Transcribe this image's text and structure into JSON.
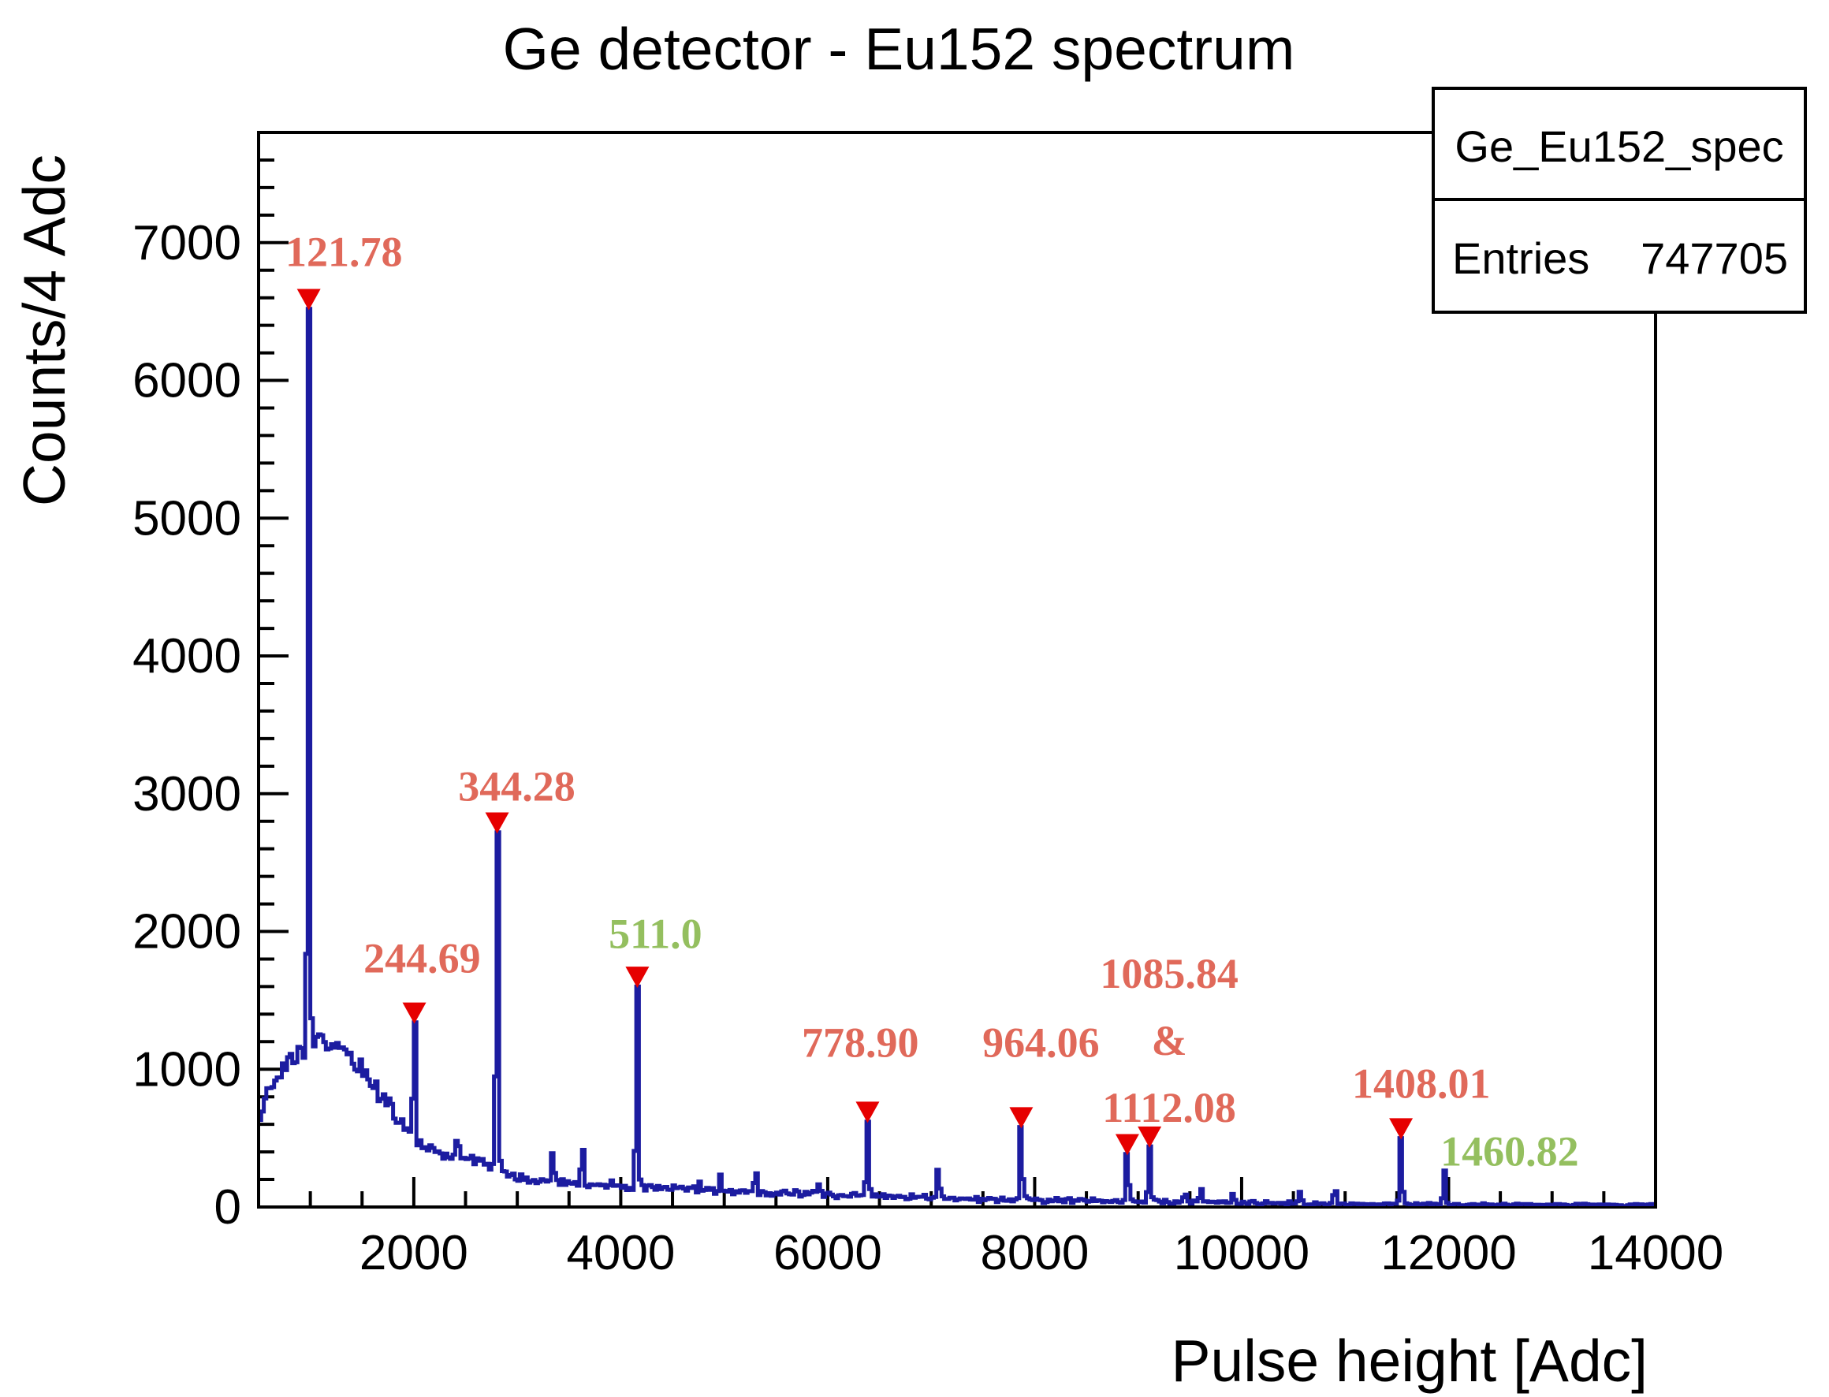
{
  "title": "Ge detector - Eu152 spectrum",
  "axes": {
    "x_title": "Pulse height [Adc]",
    "y_title": "Counts/4 Adc"
  },
  "stats_box": {
    "title": "Ge_Eu152_spec",
    "entries_label": "Entries",
    "entries_value": "747705"
  },
  "chart_data": {
    "type": "line",
    "title": "Ge detector - Eu152 spectrum",
    "xlabel": "Pulse height [Adc]",
    "ylabel": "Counts/4 Adc",
    "xlim": [
      500,
      14000
    ],
    "ylim": [
      0,
      7800
    ],
    "x_major_ticks": [
      2000,
      4000,
      6000,
      8000,
      10000,
      12000,
      14000
    ],
    "x_minor_step": 500,
    "y_major_ticks": [
      0,
      1000,
      2000,
      3000,
      4000,
      5000,
      6000,
      7000
    ],
    "y_minor_step": 200,
    "grid": false,
    "legend_position": "none",
    "bin_width_adc": 25,
    "line_color": "#1c1ca0",
    "marker_color": "#e60000",
    "frame_color": "#000000",
    "label_colors": {
      "red": "#e0695a",
      "green": "#94bf5f"
    },
    "continuum": [
      [
        500,
        560
      ],
      [
        550,
        760
      ],
      [
        620,
        880
      ],
      [
        700,
        960
      ],
      [
        790,
        1040
      ],
      [
        880,
        1110
      ],
      [
        960,
        1160
      ],
      [
        1060,
        1190
      ],
      [
        1160,
        1185
      ],
      [
        1260,
        1150
      ],
      [
        1360,
        1100
      ],
      [
        1460,
        1030
      ],
      [
        1560,
        950
      ],
      [
        1660,
        860
      ],
      [
        1760,
        740
      ],
      [
        1860,
        620
      ],
      [
        1960,
        530
      ],
      [
        2060,
        430
      ],
      [
        2160,
        400
      ],
      [
        2260,
        380
      ],
      [
        2400,
        355
      ],
      [
        2550,
        335
      ],
      [
        2700,
        310
      ],
      [
        2850,
        270
      ],
      [
        2950,
        230
      ],
      [
        3100,
        195
      ],
      [
        3300,
        182
      ],
      [
        3500,
        172
      ],
      [
        3700,
        165
      ],
      [
        3900,
        158
      ],
      [
        4100,
        150
      ],
      [
        4300,
        140
      ],
      [
        4600,
        127
      ],
      [
        4900,
        117
      ],
      [
        5200,
        110
      ],
      [
        5500,
        102
      ],
      [
        5900,
        93
      ],
      [
        6200,
        85
      ],
      [
        6500,
        78
      ],
      [
        6800,
        72
      ],
      [
        7100,
        66
      ],
      [
        7500,
        60
      ],
      [
        7900,
        55
      ],
      [
        8300,
        48
      ],
      [
        8700,
        43
      ],
      [
        9100,
        40
      ],
      [
        9500,
        35
      ],
      [
        9900,
        31
      ],
      [
        10300,
        28
      ],
      [
        10800,
        25
      ],
      [
        11300,
        22
      ],
      [
        11800,
        20
      ],
      [
        12300,
        18
      ],
      [
        12800,
        16
      ],
      [
        13400,
        14
      ],
      [
        14000,
        13
      ]
    ],
    "peaks": [
      {
        "adc": 985,
        "value": 6520,
        "sigma": 11,
        "marker": true,
        "marker_value": 6590
      },
      {
        "adc": 2005,
        "value": 1340,
        "sigma": 11,
        "marker": true,
        "marker_value": 1410
      },
      {
        "adc": 2420,
        "value": 480,
        "sigma": 11,
        "marker": false,
        "marker_value": 0
      },
      {
        "adc": 2805,
        "value": 2720,
        "sigma": 11,
        "marker": true,
        "marker_value": 2790
      },
      {
        "adc": 3343,
        "value": 390,
        "sigma": 11,
        "marker": false,
        "marker_value": 0
      },
      {
        "adc": 3625,
        "value": 415,
        "sigma": 11,
        "marker": false,
        "marker_value": 0
      },
      {
        "adc": 4160,
        "value": 1600,
        "sigma": 12,
        "marker": true,
        "marker_value": 1670
      },
      {
        "adc": 4760,
        "value": 185,
        "sigma": 11,
        "marker": false,
        "marker_value": 0
      },
      {
        "adc": 4966,
        "value": 235,
        "sigma": 11,
        "marker": false,
        "marker_value": 0
      },
      {
        "adc": 5301,
        "value": 245,
        "sigma": 11,
        "marker": false,
        "marker_value": 0
      },
      {
        "adc": 5920,
        "value": 165,
        "sigma": 11,
        "marker": false,
        "marker_value": 0
      },
      {
        "adc": 6385,
        "value": 620,
        "sigma": 12,
        "marker": true,
        "marker_value": 690
      },
      {
        "adc": 7068,
        "value": 270,
        "sigma": 11,
        "marker": false,
        "marker_value": 0
      },
      {
        "adc": 7870,
        "value": 580,
        "sigma": 12,
        "marker": true,
        "marker_value": 650
      },
      {
        "adc": 8895,
        "value": 385,
        "sigma": 12,
        "marker": true,
        "marker_value": 455
      },
      {
        "adc": 9110,
        "value": 440,
        "sigma": 12,
        "marker": true,
        "marker_value": 510
      },
      {
        "adc": 9450,
        "value": 90,
        "sigma": 11,
        "marker": false,
        "marker_value": 0
      },
      {
        "adc": 9600,
        "value": 130,
        "sigma": 11,
        "marker": false,
        "marker_value": 0
      },
      {
        "adc": 9920,
        "value": 95,
        "sigma": 11,
        "marker": false,
        "marker_value": 0
      },
      {
        "adc": 10573,
        "value": 110,
        "sigma": 11,
        "marker": false,
        "marker_value": 0
      },
      {
        "adc": 10900,
        "value": 115,
        "sigma": 11,
        "marker": false,
        "marker_value": 0
      },
      {
        "adc": 11540,
        "value": 500,
        "sigma": 12,
        "marker": true,
        "marker_value": 570
      },
      {
        "adc": 11960,
        "value": 265,
        "sigma": 12,
        "marker": false,
        "marker_value": 0
      }
    ],
    "annotations": [
      {
        "lines": [
          "121.78"
        ],
        "color": "red",
        "adc": 1325,
        "value": 6940
      },
      {
        "lines": [
          "244.69"
        ],
        "color": "red",
        "adc": 2080,
        "value": 1810
      },
      {
        "lines": [
          "344.28"
        ],
        "color": "red",
        "adc": 2995,
        "value": 3060
      },
      {
        "lines": [
          "511.0"
        ],
        "color": "green",
        "adc": 4335,
        "value": 1990
      },
      {
        "lines": [
          "778.90"
        ],
        "color": "red",
        "adc": 6315,
        "value": 1200
      },
      {
        "lines": [
          "964.06"
        ],
        "color": "red",
        "adc": 8060,
        "value": 1200
      },
      {
        "lines": [
          "1085.84",
          "&",
          "1112.08"
        ],
        "color": "red",
        "adc": 9300,
        "value": 1700
      },
      {
        "lines": [
          "1408.01"
        ],
        "color": "red",
        "adc": 11735,
        "value": 900
      },
      {
        "lines": [
          "1460.82"
        ],
        "color": "green",
        "adc": 12590,
        "value": 410
      }
    ],
    "annotation_line_spacing": 486
  }
}
